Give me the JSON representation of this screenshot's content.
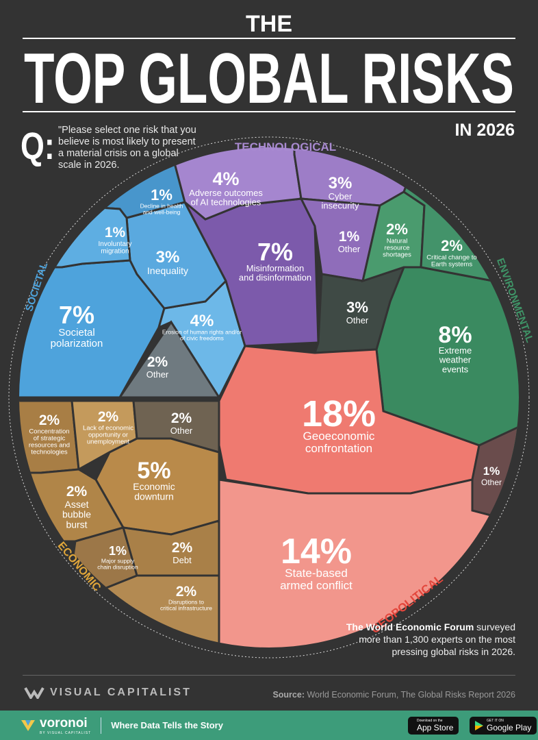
{
  "header": {
    "the": "THE",
    "title": "TOP GLOBAL RISKS",
    "year": "IN 2026"
  },
  "question": {
    "mark": "Q:",
    "text": "\"Please select one risk that you believe is most likely to present a material crisis on a global scale in 2026."
  },
  "survey": {
    "bold": "The World Economic Forum",
    "rest": " surveyed more than 1,300 experts on the most pressing global risks in 2026."
  },
  "brand": {
    "name": "VISUAL CAPITALIST"
  },
  "source": {
    "label": "Source:",
    "text": " World Economic Forum, The Global Risks Report 2026"
  },
  "footer": {
    "logo": "voronoi",
    "logo_sub": "BY VISUAL CAPITALIST",
    "tagline": "Where Data Tells the Story",
    "app_store_small": "Download on the",
    "app_store": "App Store",
    "google_small": "GET IT ON",
    "google": "Google Play"
  },
  "chart_data": {
    "type": "voronoi",
    "unit": "%",
    "categories": [
      {
        "name": "SOCIETAL",
        "color": "#4ea3dc",
        "items": [
          {
            "label": "Societal polarization",
            "value": 7
          },
          {
            "label": "Erosion of human rights and/or of civic freedoms",
            "value": 4
          },
          {
            "label": "Inequality",
            "value": 3
          },
          {
            "label": "Other",
            "value": 2
          },
          {
            "label": "Decline in health and well-being",
            "value": 1
          },
          {
            "label": "Involuntary migration",
            "value": 1
          }
        ]
      },
      {
        "name": "TECHNOLOGICAL",
        "color": "#9f7fc8",
        "items": [
          {
            "label": "Misinformation and disinformation",
            "value": 7
          },
          {
            "label": "Adverse outcomes of AI technologies",
            "value": 4
          },
          {
            "label": "Cyber insecurity",
            "value": 3
          },
          {
            "label": "Other",
            "value": 1
          }
        ]
      },
      {
        "name": "ENVIRONMENTAL",
        "color": "#3f9467",
        "items": [
          {
            "label": "Extreme weather events",
            "value": 8
          },
          {
            "label": "Other",
            "value": 3
          },
          {
            "label": "Natural resource shortages",
            "value": 2
          },
          {
            "label": "Critical change to Earth systems",
            "value": 2
          }
        ]
      },
      {
        "name": "GEOPOLITICAL",
        "color": "#e3463c",
        "items": [
          {
            "label": "Geoeconomic confrontation",
            "value": 18
          },
          {
            "label": "State-based armed conflict",
            "value": 14
          },
          {
            "label": "Other",
            "value": 1
          }
        ]
      },
      {
        "name": "ECONOMIC",
        "color": "#e0a63a",
        "items": [
          {
            "label": "Economic downturn",
            "value": 5
          },
          {
            "label": "Concentration of strategic resources and technologies",
            "value": 2
          },
          {
            "label": "Lack of economic opportunity or unemployment",
            "value": 2
          },
          {
            "label": "Other",
            "value": 2
          },
          {
            "label": "Asset bubble burst",
            "value": 2
          },
          {
            "label": "Debt",
            "value": 2
          },
          {
            "label": "Disruptions to critical infrastructure",
            "value": 2
          },
          {
            "label": "Major supply chain disruption",
            "value": 1
          }
        ]
      }
    ]
  }
}
